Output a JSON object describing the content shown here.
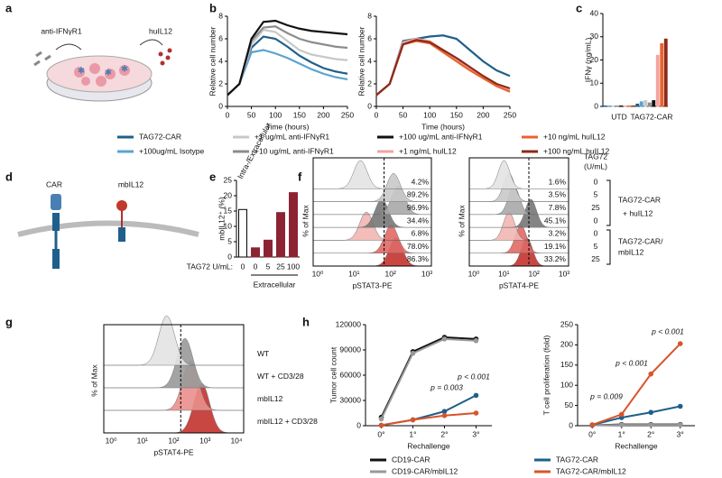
{
  "panel_labels": [
    "a",
    "b",
    "c",
    "d",
    "e",
    "f",
    "g",
    "h"
  ],
  "diagram_a": {
    "left": "anti-IFNγR1",
    "right": "huIL12"
  },
  "diagram_d": {
    "left": "CAR",
    "right": "mbIL12"
  },
  "chart_data": [
    {
      "type": "line",
      "ylabel": "Relative cell number",
      "xlabel": "Time (hours)",
      "x": [
        0,
        25,
        50,
        75,
        100,
        125,
        150,
        175,
        200,
        225,
        250
      ],
      "xlim": [
        0,
        250
      ],
      "xticks": [
        0,
        50,
        100,
        150,
        200,
        250
      ],
      "ylim": [
        0,
        8
      ],
      "yticks": [
        0,
        2,
        4,
        6,
        8
      ],
      "series": [
        {
          "name": "TAG72-CAR",
          "color": "#1f5f8b",
          "values": [
            1,
            2,
            5.2,
            6.2,
            6.0,
            5.3,
            4.5,
            3.9,
            3.4,
            3.1,
            2.9
          ]
        },
        {
          "name": "+100ug/mL Isotype",
          "color": "#5ba3d0",
          "values": [
            1,
            2,
            4.8,
            5.0,
            4.7,
            4.3,
            3.8,
            3.3,
            2.9,
            2.6,
            2.4
          ]
        },
        {
          "name": "+1 ug/mL anti-IFNγR1",
          "color": "#c8c8c8",
          "values": [
            1,
            2,
            5.5,
            6.8,
            6.6,
            5.8,
            5.0,
            4.6,
            4.4,
            4.2,
            4.1
          ]
        },
        {
          "name": "+10 ug/mL anti-IFNγR1",
          "color": "#8c8c8c",
          "values": [
            1,
            2,
            5.8,
            7.0,
            7.1,
            6.5,
            6.0,
            5.7,
            5.5,
            5.3,
            5.2
          ]
        },
        {
          "name": "+100 ug/mL anti-IFNγR1",
          "color": "#111111",
          "values": [
            1,
            2,
            6.0,
            7.5,
            7.6,
            7.2,
            6.9,
            6.7,
            6.6,
            6.5,
            6.4
          ]
        }
      ]
    },
    {
      "type": "line",
      "ylabel": "Relative cell number",
      "xlabel": "Time (hours)",
      "x": [
        0,
        25,
        50,
        75,
        100,
        125,
        150,
        175,
        200,
        225,
        250
      ],
      "xlim": [
        0,
        250
      ],
      "xticks": [
        0,
        50,
        100,
        150,
        200,
        250
      ],
      "ylim": [
        0,
        8
      ],
      "yticks": [
        0,
        2,
        4,
        6,
        8
      ],
      "series": [
        {
          "color": "#1f5f8b",
          "values": [
            1,
            2,
            5.8,
            6.0,
            6.2,
            6.3,
            6.0,
            5.0,
            4.0,
            3.2,
            2.7
          ]
        },
        {
          "name": "+1 ng/mL huIL12",
          "color": "#f4a3a0",
          "values": [
            1,
            2,
            5.7,
            6.0,
            5.8,
            5.0,
            4.2,
            3.4,
            2.6,
            1.9,
            1.4
          ]
        },
        {
          "name": "+10 ng/mL huIL12",
          "color": "#e8632c",
          "values": [
            1,
            2,
            5.5,
            5.8,
            5.6,
            4.8,
            4.0,
            3.2,
            2.5,
            1.8,
            1.3
          ]
        },
        {
          "name": "+100 ng/mL huIL12",
          "color": "#8b2a1a",
          "values": [
            1,
            2,
            5.5,
            5.9,
            5.7,
            5.0,
            4.3,
            3.5,
            2.7,
            2.0,
            1.6
          ]
        }
      ]
    },
    {
      "type": "bar",
      "ylabel": "IFNγ (ng/mL)",
      "groups": [
        "UTD",
        "TAG72-CAR"
      ],
      "categories": [
        null,
        null,
        null,
        null,
        null,
        null,
        null,
        null,
        null,
        null,
        null,
        null,
        null,
        null,
        null,
        null
      ],
      "values": [
        0.2,
        0.2,
        0.2,
        0.2,
        0.2,
        0.2,
        0.2,
        0.2,
        1.0,
        2.0,
        2.5,
        1.5,
        2.5,
        22,
        27,
        29
      ],
      "colors": [
        "#1f5f8b",
        "#5ba3d0",
        "#c8c8c8",
        "#8c8c8c",
        "#111111",
        "#f4a3a0",
        "#e8632c",
        "#8b2a1a",
        "#1f5f8b",
        "#5ba3d0",
        "#c8c8c8",
        "#8c8c8c",
        "#111111",
        "#f4a3a0",
        "#e8632c",
        "#8b2a1a"
      ],
      "ylim": [
        0,
        40
      ],
      "yticks": [
        0,
        10,
        20,
        30,
        40
      ]
    },
    {
      "type": "bar",
      "ylabel": "mbIL12⁺ (%)",
      "annotation": "Intra-/Extracellular",
      "xtitle": "TAG72 U/mL:",
      "group": "Extracellular",
      "categories": [
        "0",
        "0",
        "5",
        "25",
        "100"
      ],
      "values": [
        15.5,
        3,
        5.5,
        14.5,
        21
      ],
      "colors": [
        "#ffffff",
        "#8b2332",
        "#8b2332",
        "#8b2332",
        "#8b2332"
      ],
      "ylim": [
        0,
        25
      ],
      "yticks": [
        0,
        5,
        10,
        15,
        20,
        25
      ]
    },
    {
      "type": "line",
      "markers": true,
      "ylabel": "Tumor cell count",
      "xlabel": "Rechallenge",
      "categories": [
        "0°",
        "1°",
        "2°",
        "3°"
      ],
      "ylim": [
        0,
        120000
      ],
      "yticks": [
        0,
        30000,
        60000,
        90000,
        120000
      ],
      "annotations": [
        "p = 0.003",
        "p < 0.001"
      ],
      "series": [
        {
          "name": "CD19-CAR",
          "color": "#111111",
          "values": [
            10000,
            88000,
            105000,
            103000
          ]
        },
        {
          "name": "CD19-CAR/mbIL12",
          "color": "#999999",
          "values": [
            8000,
            86000,
            103000,
            101000
          ]
        },
        {
          "name": "TAG72-CAR",
          "color": "#1f5f8b",
          "values": [
            500,
            7000,
            17000,
            36000
          ]
        },
        {
          "name": "TAG72-CAR/mbIL12",
          "color": "#d9542b",
          "values": [
            500,
            7000,
            12000,
            15000
          ]
        }
      ]
    },
    {
      "type": "line",
      "markers": true,
      "ylabel": "T cell proliferation (fold)",
      "xlabel": "Rechallenge",
      "categories": [
        "0°",
        "1°",
        "2°",
        "3°"
      ],
      "ylim": [
        0,
        250
      ],
      "yticks": [
        0,
        50,
        100,
        150,
        200,
        250
      ],
      "annotations": [
        "p = 0.009",
        "p < 0.001",
        "p < 0.001"
      ],
      "series": [
        {
          "color": "#111111",
          "values": [
            1,
            3,
            3,
            3
          ]
        },
        {
          "color": "#999999",
          "values": [
            1,
            2,
            2,
            2
          ]
        },
        {
          "color": "#1f5f8b",
          "values": [
            2,
            20,
            33,
            48
          ]
        },
        {
          "color": "#d9542b",
          "values": [
            2,
            28,
            128,
            203
          ]
        }
      ]
    }
  ],
  "flow_f": {
    "left": {
      "xlabel": "pSTAT3-PE",
      "ylabel": "% of Max",
      "xticks": [
        "10⁰",
        "10¹",
        "10²",
        "10³"
      ],
      "percents": [
        "4.2%",
        "89.2%",
        "96.9%",
        "34.4%",
        "6.8%",
        "78.0%",
        "86.3%"
      ]
    },
    "right": {
      "xlabel": "pSTAT4-PE",
      "ylabel": "% of Max",
      "xticks": [
        "10⁰",
        "10¹",
        "10²",
        "10³"
      ],
      "percents": [
        "1.6%",
        "3.5%",
        "7.8%",
        "45.1%",
        "3.2%",
        "19.1%",
        "33.2%"
      ]
    },
    "header": [
      "TAG72",
      "(U/mL)"
    ],
    "doses": [
      "0",
      "5",
      "25",
      "0",
      "0",
      "5",
      "25"
    ],
    "groups": [
      "TAG72-CAR",
      "+ huIL12",
      "TAG72-CAR/",
      "mbIL12"
    ]
  },
  "flow_g": {
    "xlabel": "pSTAT4-PE",
    "ylabel": "% of Max",
    "xticks": [
      "10⁰",
      "10¹",
      "10²",
      "10³",
      "10⁴"
    ],
    "rows": [
      "WT",
      "WT + CD3/28",
      "mbIL12",
      "mbIL12 + CD3/28"
    ]
  }
}
